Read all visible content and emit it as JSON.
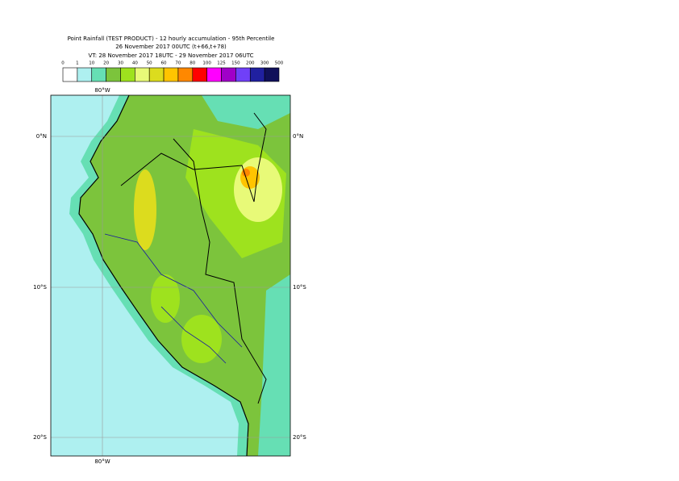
{
  "title_lines": [
    "Point Rainfall (TEST PRODUCT) - 12 hourly accumulation - 95th Percentile",
    "26 November 2017 00UTC (t+66,t+78)",
    "VT: 28 November 2017 18UTC - 29 November 2017 06UTC"
  ],
  "colorbar": {
    "bounds": [
      0,
      1,
      10,
      20,
      30,
      40,
      50,
      60,
      70,
      80,
      100,
      125,
      150,
      200,
      300,
      500
    ],
    "colors": [
      "#ffffff",
      "#aef0f0",
      "#66dfb4",
      "#7cc43c",
      "#9ee21e",
      "#e8fa78",
      "#dcdc1e",
      "#ffc400",
      "#ff8800",
      "#ff0000",
      "#ff00ff",
      "#a000c8",
      "#7040f8",
      "#2020a0",
      "#10105a"
    ]
  },
  "map": {
    "lon_labels": [
      "80°W"
    ],
    "lat_labels": [
      "0°N",
      "10°S",
      "20°S"
    ]
  }
}
